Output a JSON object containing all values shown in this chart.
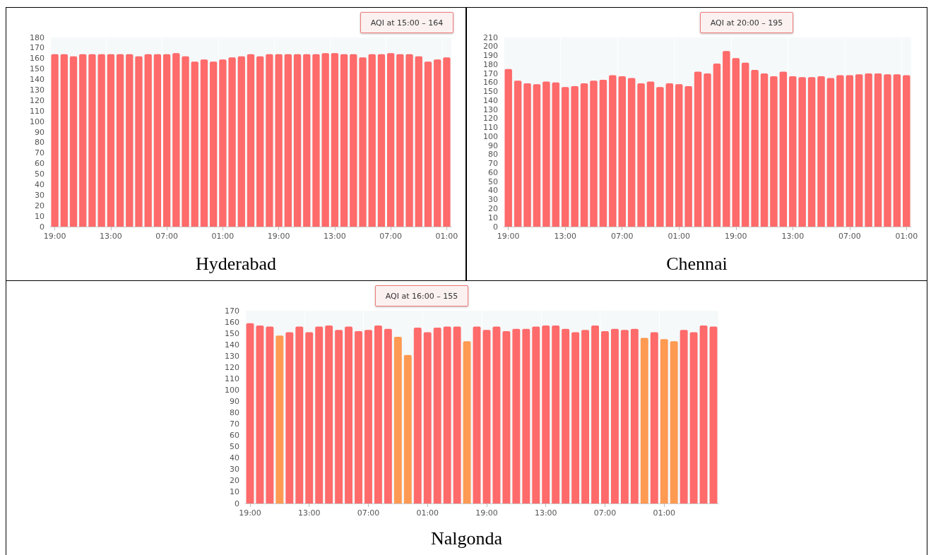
{
  "chart_data": [
    {
      "type": "bar",
      "title": "Hyderabad",
      "categories": [
        "19:00",
        null,
        null,
        null,
        null,
        null,
        "13:00",
        null,
        null,
        null,
        null,
        null,
        "07:00",
        null,
        null,
        null,
        null,
        null,
        "01:00",
        null,
        null,
        null,
        null,
        null,
        "19:00",
        null,
        null,
        null,
        null,
        null,
        "13:00",
        null,
        null,
        null,
        null,
        null,
        "07:00",
        null,
        null,
        null,
        null,
        null,
        "01:00"
      ],
      "values": [
        164,
        164,
        162,
        164,
        164,
        164,
        164,
        164,
        164,
        162,
        164,
        164,
        164,
        165,
        162,
        157,
        159,
        157,
        159,
        161,
        162,
        164,
        162,
        164,
        164,
        164,
        164,
        164,
        164,
        165,
        165,
        164,
        164,
        161,
        164,
        164,
        165,
        164,
        164,
        162,
        157,
        159,
        161
      ],
      "color": "#ff6a6a",
      "ylim": [
        0,
        180
      ],
      "yticks": [
        0,
        10,
        20,
        30,
        40,
        50,
        60,
        70,
        80,
        90,
        100,
        110,
        120,
        130,
        140,
        150,
        160,
        170,
        180
      ],
      "grid": "x",
      "annotations": [
        "AQI at 15:00 – 164"
      ]
    },
    {
      "type": "bar",
      "title": "Chennai",
      "categories": [
        "19:00",
        null,
        null,
        null,
        null,
        null,
        "13:00",
        null,
        null,
        null,
        null,
        null,
        "07:00",
        null,
        null,
        null,
        null,
        null,
        "01:00",
        null,
        null,
        null,
        null,
        null,
        "19:00",
        null,
        null,
        null,
        null,
        null,
        "13:00",
        null,
        null,
        null,
        null,
        null,
        "07:00",
        null,
        null,
        null,
        null,
        null,
        "01:00"
      ],
      "values": [
        175,
        162,
        159,
        158,
        161,
        160,
        155,
        156,
        159,
        162,
        163,
        168,
        167,
        165,
        159,
        161,
        155,
        159,
        158,
        156,
        172,
        170,
        181,
        195,
        187,
        182,
        174,
        170,
        167,
        172,
        167,
        166,
        166,
        167,
        165,
        168,
        168,
        169,
        170,
        170,
        169,
        169,
        168
      ],
      "color": "#ff6a6a",
      "ylim": [
        0,
        210
      ],
      "yticks": [
        0,
        10,
        20,
        30,
        40,
        50,
        60,
        70,
        80,
        90,
        100,
        110,
        120,
        130,
        140,
        150,
        160,
        170,
        180,
        190,
        200,
        210
      ],
      "grid": "x",
      "annotations": [
        "AQI at 20:00 – 195"
      ]
    },
    {
      "type": "bar",
      "title": "Nalgonda",
      "categories": [
        "19:00",
        null,
        null,
        null,
        null,
        null,
        "13:00",
        null,
        null,
        null,
        null,
        null,
        "07:00",
        null,
        null,
        null,
        null,
        null,
        "01:00",
        null,
        null,
        null,
        null,
        null,
        "19:00",
        null,
        null,
        null,
        null,
        null,
        "13:00",
        null,
        null,
        null,
        null,
        null,
        "07:00",
        null,
        null,
        null,
        null,
        null,
        "01:00",
        null,
        null,
        null,
        null,
        null
      ],
      "values": [
        159,
        157,
        156,
        148,
        151,
        156,
        151,
        156,
        157,
        153,
        156,
        152,
        153,
        157,
        154,
        147,
        131,
        155,
        151,
        155,
        156,
        156,
        143,
        156,
        153,
        156,
        152,
        154,
        154,
        156,
        157,
        157,
        154,
        151,
        153,
        157,
        152,
        154,
        153,
        154,
        146,
        151,
        145,
        143,
        153,
        151,
        157,
        156
      ],
      "colors": [
        "#ff6a6a",
        "#ff6a6a",
        "#ff6a6a",
        "#ff9a52",
        "#ff6a6a",
        "#ff6a6a",
        "#ff6a6a",
        "#ff6a6a",
        "#ff6a6a",
        "#ff6a6a",
        "#ff6a6a",
        "#ff6a6a",
        "#ff6a6a",
        "#ff6a6a",
        "#ff6a6a",
        "#ff9a52",
        "#ff9a52",
        "#ff6a6a",
        "#ff6a6a",
        "#ff6a6a",
        "#ff6a6a",
        "#ff6a6a",
        "#ff9a52",
        "#ff6a6a",
        "#ff6a6a",
        "#ff6a6a",
        "#ff6a6a",
        "#ff6a6a",
        "#ff6a6a",
        "#ff6a6a",
        "#ff6a6a",
        "#ff6a6a",
        "#ff6a6a",
        "#ff6a6a",
        "#ff6a6a",
        "#ff6a6a",
        "#ff6a6a",
        "#ff6a6a",
        "#ff6a6a",
        "#ff6a6a",
        "#ff9a52",
        "#ff6a6a",
        "#ff9a52",
        "#ff9a52",
        "#ff6a6a",
        "#ff6a6a",
        "#ff6a6a",
        "#ff6a6a"
      ],
      "ylim": [
        0,
        170
      ],
      "yticks": [
        0,
        10,
        20,
        30,
        40,
        50,
        60,
        70,
        80,
        90,
        100,
        110,
        120,
        130,
        140,
        150,
        160,
        170
      ],
      "grid": "x",
      "annotations": [
        "AQI at 16:00 – 155"
      ]
    }
  ]
}
